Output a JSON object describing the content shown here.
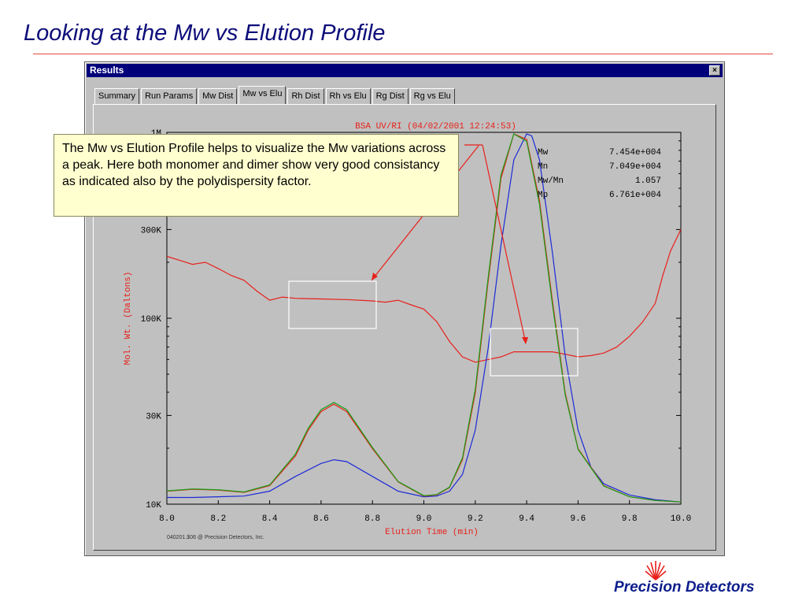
{
  "slide": {
    "title": "Looking at the Mw vs Elution Profile",
    "callout": "The Mw vs Elution Profile helps to visualize the Mw variations across a peak. Here both monomer and dimer show very good consistancy as indicated also by the polydispersity factor.",
    "brand": "Precision Detectors"
  },
  "window": {
    "title": "Results",
    "close_label": "×",
    "tabs": [
      {
        "label": "Summary"
      },
      {
        "label": "Run Params"
      },
      {
        "label": "Mw Dist"
      },
      {
        "label": "Mw vs Elu"
      },
      {
        "label": "Rh Dist"
      },
      {
        "label": "Rh vs Elu"
      },
      {
        "label": "Rg Dist"
      },
      {
        "label": "Rg vs Elu"
      }
    ],
    "active_tab": "Mw vs Elu"
  },
  "colors": {
    "mw": "#e8201a",
    "blue": "#1c2ad8",
    "green": "#17a017",
    "label": "#e8201a",
    "box": "#ffffff",
    "plot_bg": "#c0c0c0"
  },
  "chart_data": {
    "type": "line",
    "title": "BSA UV/RI (04/02/2001 12:24:53)",
    "xlabel": "Elution Time (min)",
    "ylabel": "Mol. Wt. (Daltons)",
    "xlim": [
      8.0,
      10.0
    ],
    "ylim": [
      10000,
      1000000
    ],
    "yscale": "log",
    "x_ticks": [
      "8.0",
      "8.2",
      "8.4",
      "8.6",
      "8.8",
      "9.0",
      "9.2",
      "9.4",
      "9.6",
      "9.8",
      "10.0"
    ],
    "y_ticks": [
      {
        "label": "1M",
        "value": 1000000
      },
      {
        "label": "300K",
        "value": 300000
      },
      {
        "label": "100K",
        "value": 100000
      },
      {
        "label": "30K",
        "value": 30000
      },
      {
        "label": "10K",
        "value": 10000
      }
    ],
    "footer": "040201.$06 @ Precision Detectors, Inc.",
    "stats": [
      {
        "label": "Mw",
        "value": "7.454e+004"
      },
      {
        "label": "Mn",
        "value": "7.049e+004"
      },
      {
        "label": "Mw/Mn",
        "value": "1.057"
      },
      {
        "label": "Mp",
        "value": "6.761e+004"
      }
    ],
    "series": [
      {
        "color": "#e8201a",
        "x": [
          8.0,
          8.05,
          8.1,
          8.15,
          8.2,
          8.25,
          8.3,
          8.35,
          8.4,
          8.45,
          8.5,
          8.6,
          8.7,
          8.8,
          8.85,
          8.9,
          8.95,
          9.0,
          9.05,
          9.1,
          9.15,
          9.2,
          9.25,
          9.3,
          9.35,
          9.4,
          9.45,
          9.5,
          9.55,
          9.6,
          9.65,
          9.7,
          9.75,
          9.8,
          9.85,
          9.9,
          9.93,
          9.96,
          10.0
        ],
        "y": [
          215000,
          205000,
          195000,
          200000,
          185000,
          170000,
          160000,
          140000,
          125000,
          130000,
          128000,
          127000,
          126000,
          124000,
          122000,
          125000,
          118000,
          112000,
          96000,
          75000,
          62000,
          58000,
          60000,
          62000,
          66000,
          66000,
          66000,
          66000,
          64000,
          62000,
          63000,
          65000,
          70000,
          80000,
          95000,
          120000,
          170000,
          230000,
          300000
        ]
      },
      {
        "color": "#1c2ad8",
        "x": [
          8.0,
          8.1,
          8.2,
          8.3,
          8.4,
          8.5,
          8.6,
          8.65,
          8.7,
          8.8,
          8.9,
          9.0,
          9.05,
          9.1,
          9.15,
          9.2,
          9.25,
          9.3,
          9.35,
          9.4,
          9.42,
          9.45,
          9.5,
          9.55,
          9.6,
          9.65,
          9.7,
          9.8,
          9.9,
          10.0
        ],
        "y": [
          0.018,
          0.018,
          0.02,
          0.022,
          0.035,
          0.075,
          0.11,
          0.12,
          0.115,
          0.075,
          0.035,
          0.02,
          0.022,
          0.035,
          0.08,
          0.2,
          0.42,
          0.7,
          0.93,
          1.0,
          0.995,
          0.93,
          0.68,
          0.4,
          0.2,
          0.1,
          0.055,
          0.025,
          0.012,
          0.006
        ]
      },
      {
        "color": "#e8201a",
        "x": [
          8.0,
          8.1,
          8.2,
          8.3,
          8.4,
          8.5,
          8.55,
          8.6,
          8.65,
          8.7,
          8.8,
          8.9,
          9.0,
          9.05,
          9.1,
          9.15,
          9.2,
          9.25,
          9.3,
          9.35,
          9.4,
          9.45,
          9.5,
          9.55,
          9.6,
          9.7,
          9.8,
          9.9,
          10.0
        ],
        "y": [
          0.035,
          0.04,
          0.038,
          0.032,
          0.05,
          0.13,
          0.2,
          0.25,
          0.27,
          0.25,
          0.15,
          0.06,
          0.022,
          0.025,
          0.045,
          0.12,
          0.3,
          0.6,
          0.88,
          1.0,
          0.985,
          0.82,
          0.55,
          0.3,
          0.15,
          0.05,
          0.02,
          0.01,
          0.006
        ]
      },
      {
        "color": "#17a017",
        "x": [
          8.0,
          8.1,
          8.2,
          8.3,
          8.4,
          8.5,
          8.55,
          8.6,
          8.65,
          8.7,
          8.8,
          8.9,
          9.0,
          9.05,
          9.1,
          9.15,
          9.2,
          9.25,
          9.3,
          9.35,
          9.4,
          9.45,
          9.5,
          9.55,
          9.6,
          9.7,
          9.8,
          9.9,
          10.0
        ],
        "y": [
          0.036,
          0.041,
          0.039,
          0.033,
          0.052,
          0.135,
          0.205,
          0.255,
          0.275,
          0.255,
          0.153,
          0.061,
          0.023,
          0.026,
          0.046,
          0.125,
          0.31,
          0.61,
          0.89,
          1.0,
          0.98,
          0.81,
          0.54,
          0.295,
          0.148,
          0.049,
          0.02,
          0.01,
          0.006
        ]
      }
    ]
  }
}
